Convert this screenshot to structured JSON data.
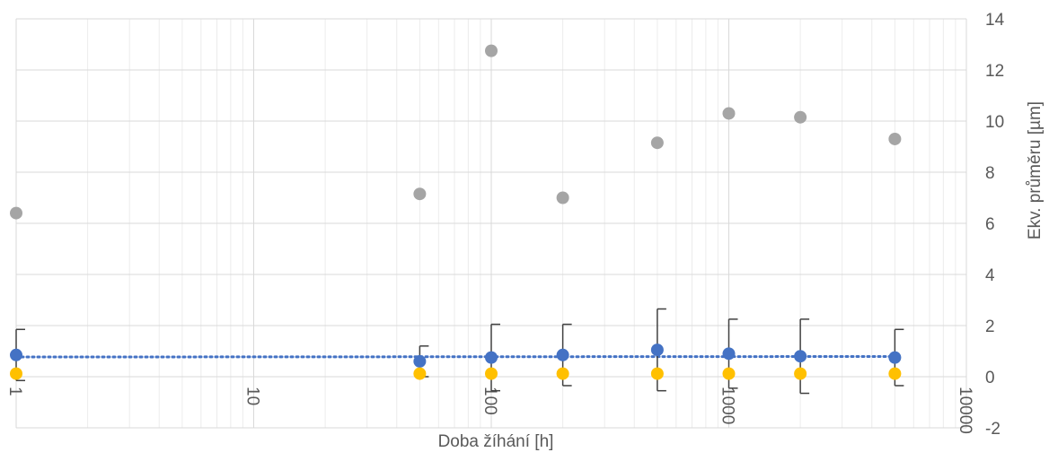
{
  "chart_data": {
    "type": "scatter",
    "title": "",
    "xlabel": "Doba žíhání [h]",
    "ylabel": "Ekv. průměru [µm]",
    "x_scale": "log",
    "xlim": [
      1,
      10000
    ],
    "ylim": [
      -2,
      14
    ],
    "x_ticks": [
      "1",
      "10",
      "100",
      "1000",
      "10000"
    ],
    "y_ticks": [
      "-2",
      "0",
      "2",
      "4",
      "6",
      "8",
      "10",
      "12",
      "14"
    ],
    "grid": true,
    "legend": "none",
    "y_axis_position": "right",
    "series": [
      {
        "color": "#A5A5A5",
        "x": [
          1,
          50,
          100,
          200,
          500,
          1000,
          2000,
          5000
        ],
        "y": [
          6.4,
          7.15,
          12.75,
          7.0,
          9.15,
          10.3,
          10.15,
          9.3
        ]
      },
      {
        "color": "#4472C4",
        "x": [
          1,
          50,
          100,
          200,
          500,
          1000,
          2000,
          5000
        ],
        "y": [
          0.85,
          0.6,
          0.75,
          0.85,
          1.05,
          0.9,
          0.8,
          0.75
        ],
        "error": [
          1.0,
          0.6,
          1.3,
          1.2,
          1.6,
          1.35,
          1.45,
          1.1
        ]
      },
      {
        "color": "#FFC000",
        "x": [
          1,
          50,
          100,
          200,
          500,
          1000,
          2000,
          5000
        ],
        "y": [
          0.12,
          0.12,
          0.12,
          0.12,
          0.12,
          0.12,
          0.12,
          0.12
        ]
      }
    ],
    "trendline": {
      "color": "#4472C4",
      "style": "dotted",
      "x": [
        1,
        5000
      ],
      "y": [
        0.77,
        0.79
      ]
    }
  }
}
